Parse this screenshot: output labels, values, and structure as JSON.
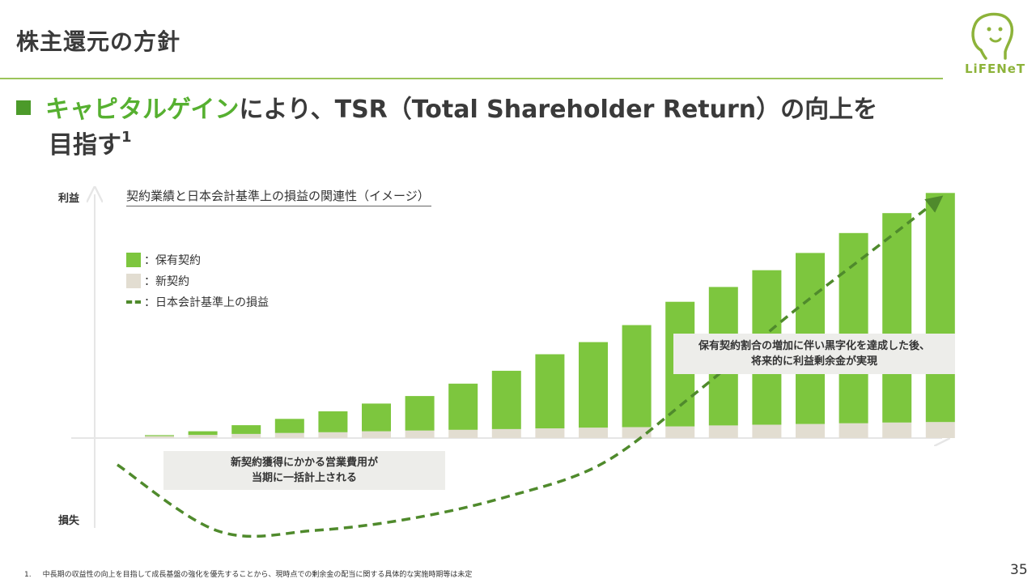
{
  "header": {
    "title": "株主還元の方針",
    "logo_text": "LiFENeT"
  },
  "headline": {
    "accent": "キャピタルゲイン",
    "text_1": "により、TSR（Total Shareholder Return）の向上を",
    "text_2": "目指す",
    "footnote_ref": "1"
  },
  "chart_data": {
    "type": "bar",
    "title": "契約業績と日本会計基準上の損益の関連性（イメージ）",
    "y_top_label": "利益",
    "y_bottom_label": "損失",
    "legend": [
      {
        "label": "：保有契約",
        "color": "#7dc63e"
      },
      {
        "label": "：新契約",
        "color": "#e2ddd1"
      },
      {
        "label": "：日本会計基準上の損益",
        "color": "#4f8a2c"
      }
    ],
    "series": [
      {
        "name": "：保有契約",
        "values": [
          0.4,
          1.5,
          3.6,
          5.8,
          8.6,
          11.4,
          14.2,
          19,
          24,
          30.5,
          35.2,
          42,
          51.3,
          57,
          63.6,
          70.4,
          78.3,
          86.2,
          94.3
        ]
      },
      {
        "name": "：新契約",
        "values": [
          0.8,
          1.3,
          1.7,
          2.1,
          2.4,
          2.8,
          3.1,
          3.4,
          3.7,
          4.0,
          4.3,
          4.5,
          4.8,
          5.2,
          5.5,
          5.8,
          6.1,
          6.4,
          6.6
        ]
      }
    ],
    "pl_curve": [
      [
        145,
        574
      ],
      [
        270,
        656
      ],
      [
        390,
        655
      ],
      [
        510,
        640
      ],
      [
        628,
        613
      ],
      [
        745,
        572
      ],
      [
        860,
        485
      ],
      [
        980,
        385
      ],
      [
        1090,
        300
      ],
      [
        1157,
        248
      ]
    ]
  },
  "callouts": {
    "new_contract": [
      "新契約獲得にかかる営業費用が",
      "当期に一括計上される"
    ],
    "in_force": [
      "保有契約割合の増加に伴い黒字化を達成した後、",
      "将来的に利益剰余金が実現"
    ]
  },
  "footnote": {
    "number": "1.",
    "text": "中長期の収益性の向上を目指して成長基盤の強化を優先することから、現時点での剰余金の配当に関する具体的な実施時期等は未定"
  },
  "page_number": "35"
}
